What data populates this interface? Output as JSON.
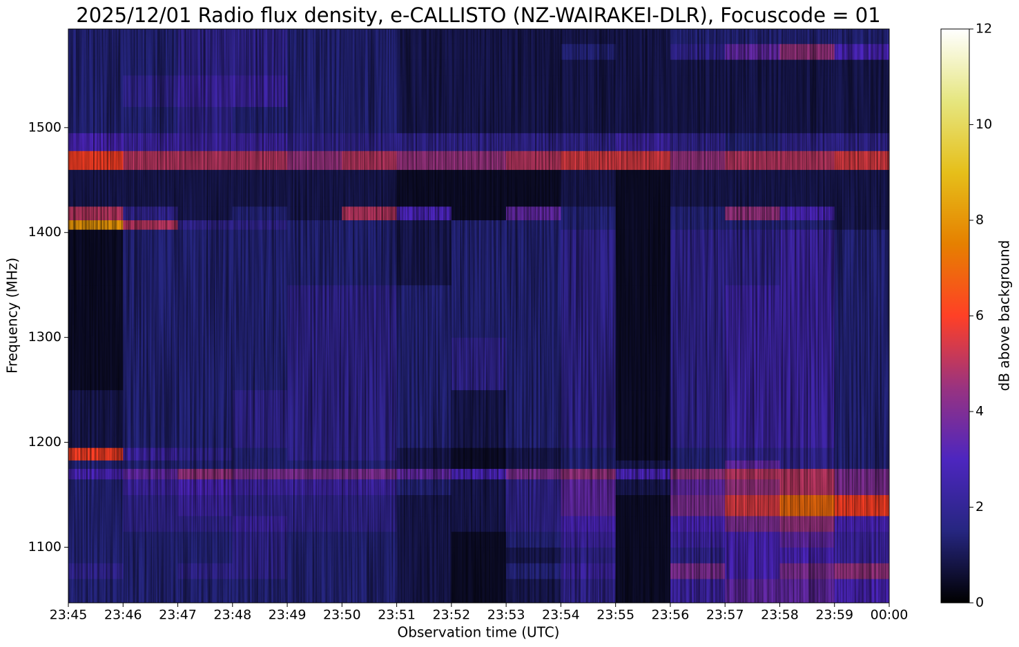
{
  "chart_data": {
    "type": "heatmap",
    "title": "2025/12/01 Radio flux density, e-CALLISTO (NZ-WAIRAKEI-DLR), Focuscode = 01",
    "x_label": "Observation time (UTC)",
    "y_label": "Frequency (MHz)",
    "colorbar_label": "dB above background",
    "x": [
      "23:45",
      "23:46",
      "23:47",
      "23:48",
      "23:49",
      "23:50",
      "23:51",
      "23:52",
      "23:53",
      "23:54",
      "23:55",
      "23:56",
      "23:57",
      "23:58",
      "23:59"
    ],
    "xticks": [
      "23:45",
      "23:46",
      "23:47",
      "23:48",
      "23:49",
      "23:50",
      "23:51",
      "23:52",
      "23:53",
      "23:54",
      "23:55",
      "23:56",
      "23:57",
      "23:58",
      "23:59",
      "00:00"
    ],
    "ybins": [
      1047,
      1070,
      1085,
      1100,
      1115,
      1130,
      1150,
      1165,
      1175,
      1183,
      1195,
      1250,
      1300,
      1350,
      1403,
      1412,
      1425,
      1460,
      1478,
      1495,
      1520,
      1550,
      1565,
      1580,
      1594
    ],
    "ylim": [
      1047,
      1594
    ],
    "yticks": [
      1100,
      1200,
      1300,
      1400,
      1500
    ],
    "zlim": [
      0,
      12
    ],
    "zticks": [
      0,
      2,
      4,
      6,
      8,
      10,
      12
    ],
    "colormap": [
      "#000000",
      "#262680",
      "#4d26bf",
      "#993380",
      "#ff4026",
      "#e68000",
      "#e6bf1a",
      "#e6e680",
      "#ffffff"
    ],
    "z": [
      [
        1.5,
        1.5,
        1.5,
        1.5,
        1.5,
        1.5,
        1.0,
        0.5,
        1,
        2,
        0.5,
        2.5,
        3.5,
        3.5,
        3
      ],
      [
        2,
        1.5,
        2,
        2,
        1.5,
        1.5,
        1,
        0.5,
        1.5,
        2.5,
        0.5,
        4,
        3,
        4,
        4.5
      ],
      [
        1.5,
        1.5,
        1.5,
        2,
        1.5,
        1.5,
        1,
        0.5,
        1,
        2,
        0.5,
        2,
        3,
        3,
        2.5
      ],
      [
        1.5,
        1.5,
        1.5,
        2,
        1.5,
        1.5,
        1,
        0.5,
        1.5,
        2.5,
        0.5,
        2.5,
        3,
        3.5,
        2.5
      ],
      [
        1.5,
        2,
        2,
        2.5,
        2,
        2,
        1,
        1,
        2,
        3,
        0.5,
        3,
        4,
        4.5,
        3
      ],
      [
        1.5,
        2,
        2.5,
        2,
        2,
        2,
        1,
        1,
        2,
        3.5,
        0.5,
        4,
        5.5,
        7,
        6
      ],
      [
        1.5,
        2.5,
        3,
        2.5,
        2.5,
        2.5,
        1.5,
        1,
        2,
        3.5,
        1,
        3.5,
        4.5,
        5,
        4
      ],
      [
        3,
        3.5,
        4.5,
        4,
        4,
        4,
        3.5,
        3,
        4,
        4.5,
        3,
        4.5,
        5,
        5,
        4
      ],
      [
        1.5,
        1.5,
        1.5,
        1.5,
        1.5,
        1.5,
        1,
        0.5,
        1,
        1.5,
        1,
        1.5,
        3.5,
        2,
        1.5
      ],
      [
        6,
        2.5,
        2,
        1.5,
        2,
        2,
        1,
        0.5,
        1,
        1.5,
        0.5,
        1.5,
        2,
        2,
        1.5
      ],
      [
        1,
        1.5,
        1.5,
        2,
        2,
        2,
        1.5,
        1,
        1.5,
        2,
        0.5,
        2,
        2.5,
        2.5,
        1.5
      ],
      [
        0.5,
        1.5,
        1.5,
        1.5,
        2,
        2,
        1.5,
        2,
        1.5,
        2,
        0.5,
        2,
        2.5,
        2.5,
        1.5
      ],
      [
        0.5,
        1.5,
        1.5,
        1.5,
        2,
        2,
        1.5,
        1.5,
        1.5,
        2,
        0.5,
        2,
        2.5,
        2.5,
        1.5
      ],
      [
        0.5,
        1.5,
        1.5,
        1.5,
        1.5,
        1.5,
        1,
        1.5,
        1.5,
        2,
        0.5,
        2,
        2,
        2.5,
        1.5
      ],
      [
        8,
        5,
        2,
        2,
        1.5,
        1.5,
        1,
        1.5,
        1.5,
        1.5,
        0.5,
        1.5,
        1.5,
        1.5,
        1
      ],
      [
        5,
        2,
        1,
        1.5,
        1,
        5,
        3,
        0.5,
        3.5,
        1.5,
        0.5,
        1.5,
        4.5,
        3,
        1
      ],
      [
        1,
        1,
        1,
        1,
        1,
        1,
        0.5,
        0.5,
        0.5,
        1,
        0.5,
        1,
        1,
        1,
        1
      ],
      [
        6,
        5,
        5,
        5,
        4.5,
        5,
        4.5,
        4.5,
        5,
        5.5,
        5.5,
        4.5,
        5,
        5,
        5.5
      ],
      [
        3,
        2.5,
        2.5,
        2.5,
        2,
        2,
        2,
        2,
        2,
        2,
        2.5,
        2,
        1.5,
        2,
        2
      ],
      [
        1.5,
        1.5,
        2,
        1.5,
        1.5,
        1.5,
        1,
        1,
        1,
        1,
        1,
        1,
        1,
        1,
        1
      ],
      [
        1.5,
        2,
        2.5,
        2.5,
        1.5,
        1.5,
        1,
        1,
        1,
        1,
        1,
        1,
        1,
        1,
        1
      ],
      [
        1.5,
        1.5,
        2,
        2,
        1.5,
        1.5,
        1,
        1,
        1,
        1,
        1,
        1,
        1,
        1,
        1
      ],
      [
        1.5,
        1.5,
        2,
        2,
        1.5,
        1.5,
        1,
        1,
        1,
        1.5,
        1,
        2,
        3.5,
        4.5,
        3
      ],
      [
        1.5,
        1.5,
        2,
        2,
        1.5,
        1.5,
        1,
        1,
        1,
        1,
        1,
        1.5,
        1.5,
        1.5,
        1.5
      ]
    ]
  }
}
